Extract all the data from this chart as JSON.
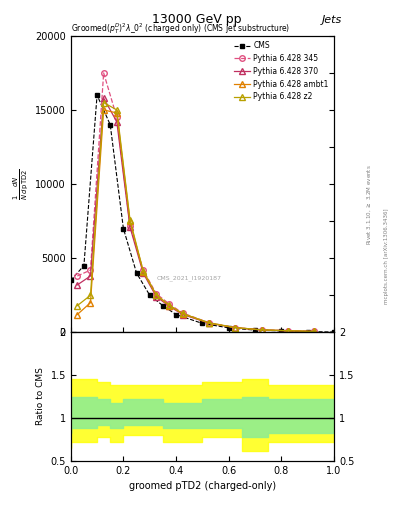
{
  "title_top": "13000 GeV pp",
  "title_right": "Jets",
  "plot_title": "Groomed$(p_T^D)^2\\lambda\\_0^2$ (charged only) (CMS jet substructure)",
  "xlabel": "groomed pTD2 (charged-only)",
  "ylabel": "\\mathrm{d}N\\,/\\,\\mathrm{d}\\,\\mathrm{pTD2}",
  "right_label": "Rivet 3.1.10, \\geq 3.2M events",
  "right_label2": "mcplots.cern.ch [arXiv:1306.3436]",
  "watermark": "CMS_2021_I1920187",
  "xlim": [
    0.0,
    1.0
  ],
  "ylim_main": [
    0,
    20000
  ],
  "ylim_ratio": [
    0.5,
    2.0
  ],
  "ratio_yticks": [
    0.5,
    1.0,
    1.5,
    2.0
  ],
  "cms_x": [
    0.0,
    0.05,
    0.1,
    0.15,
    0.2,
    0.25,
    0.3,
    0.35,
    0.4,
    0.5,
    0.6,
    0.7,
    0.8,
    0.9,
    1.0
  ],
  "cms_y": [
    3500,
    4500,
    16000,
    14000,
    7000,
    4000,
    2500,
    1800,
    1200,
    600,
    300,
    150,
    100,
    50,
    20
  ],
  "py345_x": [
    0.025,
    0.075,
    0.125,
    0.175,
    0.225,
    0.275,
    0.325,
    0.375,
    0.425,
    0.525,
    0.625,
    0.725,
    0.825,
    0.925
  ],
  "py345_y": [
    3800,
    4200,
    17500,
    14500,
    7200,
    4200,
    2600,
    1900,
    1300,
    650,
    320,
    170,
    110,
    60
  ],
  "py370_x": [
    0.025,
    0.075,
    0.125,
    0.175,
    0.225,
    0.275,
    0.325,
    0.375,
    0.425,
    0.525,
    0.625,
    0.725,
    0.825,
    0.925
  ],
  "py370_y": [
    3200,
    3800,
    15800,
    14200,
    7100,
    4000,
    2400,
    1750,
    1200,
    620,
    310,
    160,
    100,
    55
  ],
  "pyambt_x": [
    0.025,
    0.075,
    0.125,
    0.175,
    0.225,
    0.275,
    0.325,
    0.375,
    0.425,
    0.525,
    0.625,
    0.725,
    0.825,
    0.925
  ],
  "pyambt_y": [
    1200,
    2000,
    15000,
    14800,
    7500,
    4100,
    2500,
    1800,
    1250,
    630,
    315,
    165,
    105,
    58
  ],
  "pyz2_x": [
    0.025,
    0.075,
    0.125,
    0.175,
    0.225,
    0.275,
    0.325,
    0.375,
    0.425,
    0.525,
    0.625,
    0.725,
    0.825,
    0.925
  ],
  "pyz2_y": [
    1800,
    2500,
    15500,
    15000,
    7600,
    4150,
    2520,
    1820,
    1270,
    640,
    318,
    168,
    108,
    60
  ],
  "color_cms": "black",
  "color_345": "#e05080",
  "color_370": "#c03060",
  "color_ambt": "#e08000",
  "color_z2": "#b8a000",
  "green_band_x": [
    0.0,
    0.1,
    0.15,
    0.2,
    0.35,
    0.5,
    0.65,
    0.75,
    1.0
  ],
  "green_band_lo": [
    0.82,
    0.88,
    0.92,
    0.88,
    0.92,
    0.88,
    0.88,
    0.78,
    0.82
  ],
  "green_band_hi": [
    1.18,
    1.25,
    1.22,
    1.18,
    1.22,
    1.18,
    1.22,
    1.25,
    1.22
  ],
  "yellow_band_x": [
    0.0,
    0.1,
    0.15,
    0.2,
    0.35,
    0.5,
    0.65,
    0.75,
    1.0
  ],
  "yellow_band_lo": [
    0.65,
    0.72,
    0.78,
    0.72,
    0.8,
    0.72,
    0.78,
    0.62,
    0.72
  ],
  "yellow_band_hi": [
    1.35,
    1.45,
    1.42,
    1.38,
    1.38,
    1.38,
    1.42,
    1.45,
    1.38
  ]
}
